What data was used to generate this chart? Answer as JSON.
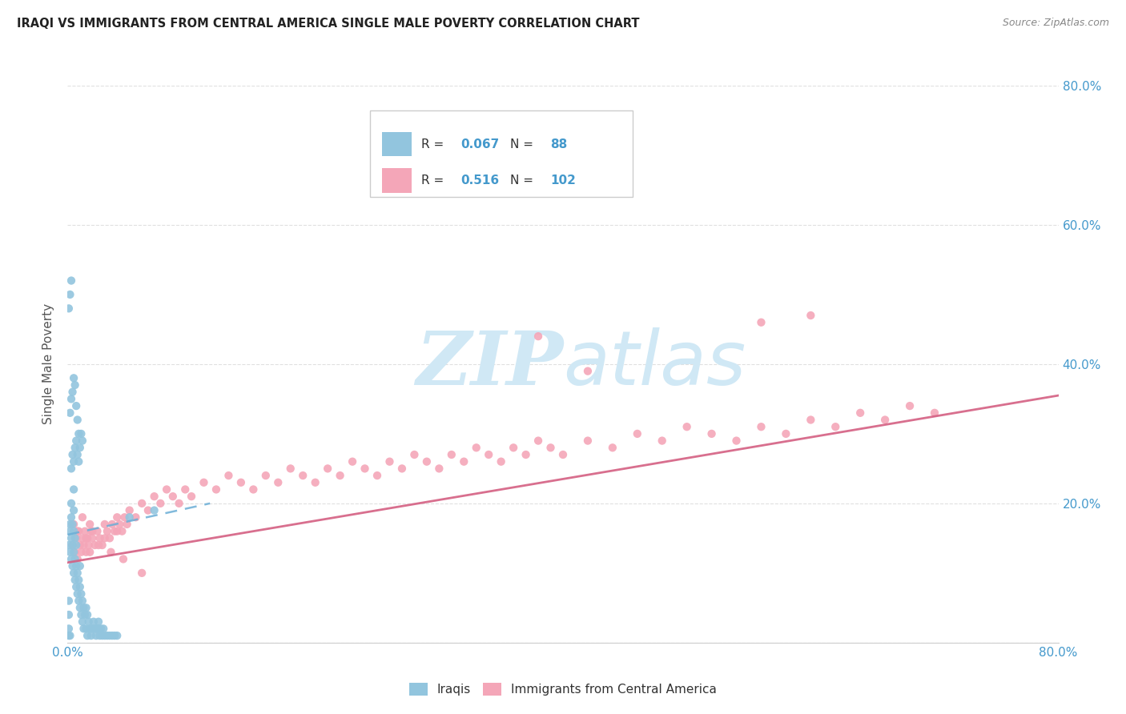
{
  "title": "IRAQI VS IMMIGRANTS FROM CENTRAL AMERICA SINGLE MALE POVERTY CORRELATION CHART",
  "source": "Source: ZipAtlas.com",
  "ylabel": "Single Male Poverty",
  "legend_label1": "Iraqis",
  "legend_label2": "Immigrants from Central America",
  "r1": "0.067",
  "n1": "88",
  "r2": "0.516",
  "n2": "102",
  "blue_color": "#92c5de",
  "pink_color": "#f4a6b8",
  "blue_line_color": "#6baed6",
  "pink_line_color": "#d45f82",
  "watermark_color": "#d0e8f5",
  "title_color": "#222222",
  "source_color": "#888888",
  "tick_color": "#4499cc",
  "ylabel_color": "#555555",
  "grid_color": "#dddddd",
  "xlim": [
    0.0,
    0.8
  ],
  "ylim": [
    0.0,
    0.8
  ],
  "blue_x": [
    0.001,
    0.002,
    0.002,
    0.002,
    0.003,
    0.003,
    0.003,
    0.003,
    0.004,
    0.004,
    0.004,
    0.005,
    0.005,
    0.005,
    0.005,
    0.005,
    0.006,
    0.006,
    0.006,
    0.007,
    0.007,
    0.007,
    0.008,
    0.008,
    0.009,
    0.009,
    0.01,
    0.01,
    0.01,
    0.011,
    0.011,
    0.012,
    0.012,
    0.013,
    0.013,
    0.014,
    0.015,
    0.015,
    0.016,
    0.016,
    0.017,
    0.018,
    0.019,
    0.02,
    0.021,
    0.022,
    0.023,
    0.024,
    0.025,
    0.025,
    0.026,
    0.027,
    0.028,
    0.029,
    0.03,
    0.032,
    0.034,
    0.036,
    0.038,
    0.04,
    0.003,
    0.004,
    0.005,
    0.006,
    0.007,
    0.008,
    0.009,
    0.01,
    0.011,
    0.012,
    0.002,
    0.003,
    0.004,
    0.005,
    0.006,
    0.007,
    0.008,
    0.009,
    0.05,
    0.07,
    0.001,
    0.002,
    0.003,
    0.001,
    0.001,
    0.001,
    0.001,
    0.002
  ],
  "blue_y": [
    0.14,
    0.17,
    0.13,
    0.16,
    0.12,
    0.15,
    0.18,
    0.2,
    0.11,
    0.14,
    0.17,
    0.1,
    0.13,
    0.16,
    0.19,
    0.22,
    0.09,
    0.12,
    0.15,
    0.08,
    0.11,
    0.14,
    0.07,
    0.1,
    0.06,
    0.09,
    0.05,
    0.08,
    0.11,
    0.04,
    0.07,
    0.03,
    0.06,
    0.02,
    0.05,
    0.04,
    0.02,
    0.05,
    0.01,
    0.04,
    0.03,
    0.02,
    0.01,
    0.02,
    0.03,
    0.02,
    0.01,
    0.02,
    0.03,
    0.02,
    0.01,
    0.02,
    0.01,
    0.02,
    0.01,
    0.01,
    0.01,
    0.01,
    0.01,
    0.01,
    0.25,
    0.27,
    0.26,
    0.28,
    0.29,
    0.27,
    0.26,
    0.28,
    0.3,
    0.29,
    0.33,
    0.35,
    0.36,
    0.38,
    0.37,
    0.34,
    0.32,
    0.3,
    0.18,
    0.19,
    0.48,
    0.5,
    0.52,
    0.06,
    0.04,
    0.02,
    0.01,
    0.01
  ],
  "pink_x": [
    0.004,
    0.006,
    0.007,
    0.008,
    0.009,
    0.01,
    0.011,
    0.012,
    0.013,
    0.014,
    0.015,
    0.016,
    0.017,
    0.018,
    0.019,
    0.02,
    0.022,
    0.024,
    0.026,
    0.028,
    0.03,
    0.032,
    0.034,
    0.036,
    0.038,
    0.04,
    0.042,
    0.044,
    0.046,
    0.048,
    0.05,
    0.055,
    0.06,
    0.065,
    0.07,
    0.075,
    0.08,
    0.085,
    0.09,
    0.095,
    0.1,
    0.11,
    0.12,
    0.13,
    0.14,
    0.15,
    0.16,
    0.17,
    0.18,
    0.19,
    0.2,
    0.21,
    0.22,
    0.23,
    0.24,
    0.25,
    0.26,
    0.27,
    0.28,
    0.29,
    0.3,
    0.31,
    0.32,
    0.33,
    0.34,
    0.35,
    0.36,
    0.37,
    0.38,
    0.39,
    0.4,
    0.42,
    0.44,
    0.46,
    0.48,
    0.5,
    0.52,
    0.54,
    0.56,
    0.58,
    0.6,
    0.62,
    0.64,
    0.66,
    0.68,
    0.7,
    0.38,
    0.42,
    0.56,
    0.6,
    0.005,
    0.008,
    0.012,
    0.015,
    0.018,
    0.02,
    0.025,
    0.03,
    0.035,
    0.04,
    0.045,
    0.06
  ],
  "pink_y": [
    0.14,
    0.13,
    0.15,
    0.12,
    0.16,
    0.14,
    0.13,
    0.15,
    0.14,
    0.16,
    0.13,
    0.15,
    0.14,
    0.13,
    0.16,
    0.15,
    0.14,
    0.16,
    0.15,
    0.14,
    0.17,
    0.16,
    0.15,
    0.17,
    0.16,
    0.18,
    0.17,
    0.16,
    0.18,
    0.17,
    0.19,
    0.18,
    0.2,
    0.19,
    0.21,
    0.2,
    0.22,
    0.21,
    0.2,
    0.22,
    0.21,
    0.23,
    0.22,
    0.24,
    0.23,
    0.22,
    0.24,
    0.23,
    0.25,
    0.24,
    0.23,
    0.25,
    0.24,
    0.26,
    0.25,
    0.24,
    0.26,
    0.25,
    0.27,
    0.26,
    0.25,
    0.27,
    0.26,
    0.28,
    0.27,
    0.26,
    0.28,
    0.27,
    0.29,
    0.28,
    0.27,
    0.29,
    0.28,
    0.3,
    0.29,
    0.31,
    0.3,
    0.29,
    0.31,
    0.3,
    0.32,
    0.31,
    0.33,
    0.32,
    0.34,
    0.33,
    0.44,
    0.39,
    0.46,
    0.47,
    0.17,
    0.16,
    0.18,
    0.15,
    0.17,
    0.16,
    0.14,
    0.15,
    0.13,
    0.16,
    0.12,
    0.1
  ],
  "blue_line_x": [
    0.0,
    0.115
  ],
  "blue_line_y0": 0.155,
  "blue_line_y1": 0.2,
  "pink_line_x": [
    0.0,
    0.8
  ],
  "pink_line_y0": 0.115,
  "pink_line_y1": 0.355
}
